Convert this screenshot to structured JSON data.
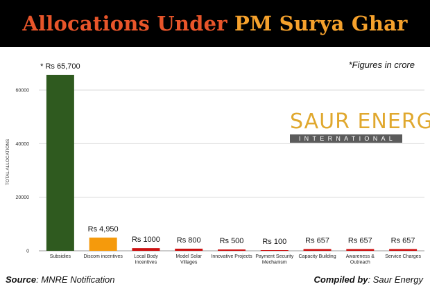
{
  "header": {
    "title_part1": "Allocations  Under ",
    "title_part2": "PM Surya Ghar"
  },
  "note": "*Figures in crore",
  "logo": {
    "main": "SAUR ENERGY",
    "sub": "INTERNATIONAL",
    "main_color": "#e0a82e",
    "sub_bg": "#5b5b5b"
  },
  "footer": {
    "source_label": "Source",
    "source_text": ": MNRE Notification",
    "compiled_label": "Compiled by",
    "compiled_text": ": Saur Energy"
  },
  "chart_data": {
    "type": "bar",
    "ylabel": "TOTAL ALLOCATIONS",
    "xlabel": "",
    "ylim": [
      0,
      70000
    ],
    "yticks": [
      0,
      20000,
      40000,
      60000
    ],
    "grid": true,
    "categories": [
      [
        "Subsidies"
      ],
      [
        "Discom incentives"
      ],
      [
        "Local Body",
        "Incentives"
      ],
      [
        "Model Solar",
        "Villages"
      ],
      [
        "Innovative Projects"
      ],
      [
        "Payment Security",
        "Mechanism"
      ],
      [
        "Capacity Building"
      ],
      [
        "Awareness &",
        "Outreach"
      ],
      [
        "Service Charges"
      ]
    ],
    "values": [
      65700,
      4950,
      1000,
      800,
      500,
      100,
      657,
      657,
      657
    ],
    "data_labels": [
      "* Rs 65,700",
      "Rs 4,950",
      "Rs 1000",
      "Rs  800",
      "Rs  500",
      "Rs  100",
      "Rs 657",
      "Rs 657",
      "Rs 657"
    ],
    "colors": [
      "#2f5a1f",
      "#f59a0c",
      "#cc1111",
      "#cc1111",
      "#cc1111",
      "#cc1111",
      "#cc1111",
      "#cc1111",
      "#cc1111"
    ]
  }
}
